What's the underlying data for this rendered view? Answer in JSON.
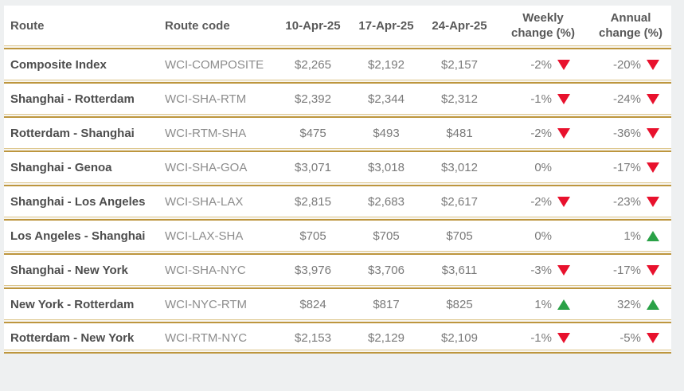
{
  "chart_data": {
    "type": "table",
    "columns": [
      "Route",
      "Route code",
      "10-Apr-25",
      "17-Apr-25",
      "24-Apr-25",
      "Weekly change (%)",
      "Annual change (%)"
    ],
    "rows": [
      {
        "route": "Composite Index",
        "code": "WCI-COMPOSITE",
        "apr10": "$2,265",
        "apr17": "$2,192",
        "apr24": "$2,157",
        "weekly": "-2%",
        "weekly_dir": "down",
        "annual": "-20%",
        "annual_dir": "down"
      },
      {
        "route": "Shanghai - Rotterdam",
        "code": "WCI-SHA-RTM",
        "apr10": "$2,392",
        "apr17": "$2,344",
        "apr24": "$2,312",
        "weekly": "-1%",
        "weekly_dir": "down",
        "annual": "-24%",
        "annual_dir": "down"
      },
      {
        "route": "Rotterdam - Shanghai",
        "code": "WCI-RTM-SHA",
        "apr10": "$475",
        "apr17": "$493",
        "apr24": "$481",
        "weekly": "-2%",
        "weekly_dir": "down",
        "annual": "-36%",
        "annual_dir": "down"
      },
      {
        "route": "Shanghai - Genoa",
        "code": "WCI-SHA-GOA",
        "apr10": "$3,071",
        "apr17": "$3,018",
        "apr24": "$3,012",
        "weekly": "0%",
        "weekly_dir": "none",
        "annual": "-17%",
        "annual_dir": "down"
      },
      {
        "route": "Shanghai - Los Angeles",
        "code": "WCI-SHA-LAX",
        "apr10": "$2,815",
        "apr17": "$2,683",
        "apr24": "$2,617",
        "weekly": "-2%",
        "weekly_dir": "down",
        "annual": "-23%",
        "annual_dir": "down"
      },
      {
        "route": "Los Angeles - Shanghai",
        "code": "WCI-LAX-SHA",
        "apr10": "$705",
        "apr17": "$705",
        "apr24": "$705",
        "weekly": "0%",
        "weekly_dir": "none",
        "annual": "1%",
        "annual_dir": "up"
      },
      {
        "route": "Shanghai - New York",
        "code": "WCI-SHA-NYC",
        "apr10": "$3,976",
        "apr17": "$3,706",
        "apr24": "$3,611",
        "weekly": "-3%",
        "weekly_dir": "down",
        "annual": "-17%",
        "annual_dir": "down"
      },
      {
        "route": "New York - Rotterdam",
        "code": "WCI-NYC-RTM",
        "apr10": "$824",
        "apr17": "$817",
        "apr24": "$825",
        "weekly": "1%",
        "weekly_dir": "up",
        "annual": "32%",
        "annual_dir": "up"
      },
      {
        "route": "Rotterdam - New York",
        "code": "WCI-RTM-NYC",
        "apr10": "$2,153",
        "apr17": "$2,129",
        "apr24": "$2,109",
        "weekly": "-1%",
        "weekly_dir": "down",
        "annual": "-5%",
        "annual_dir": "down"
      }
    ]
  },
  "headers": {
    "route": "Route",
    "route_code": "Route code",
    "date1": "10-Apr-25",
    "date2": "17-Apr-25",
    "date3": "24-Apr-25",
    "weekly_line1": "Weekly",
    "weekly_line2": "change (%)",
    "annual_line1": "Annual",
    "annual_line2": "change (%)"
  },
  "colors": {
    "accent_gold": "#bd963e",
    "light_gold": "#ddc78e",
    "down_red": "#e8112d",
    "up_green": "#2aa147",
    "page_bg": "#eef0f1"
  }
}
